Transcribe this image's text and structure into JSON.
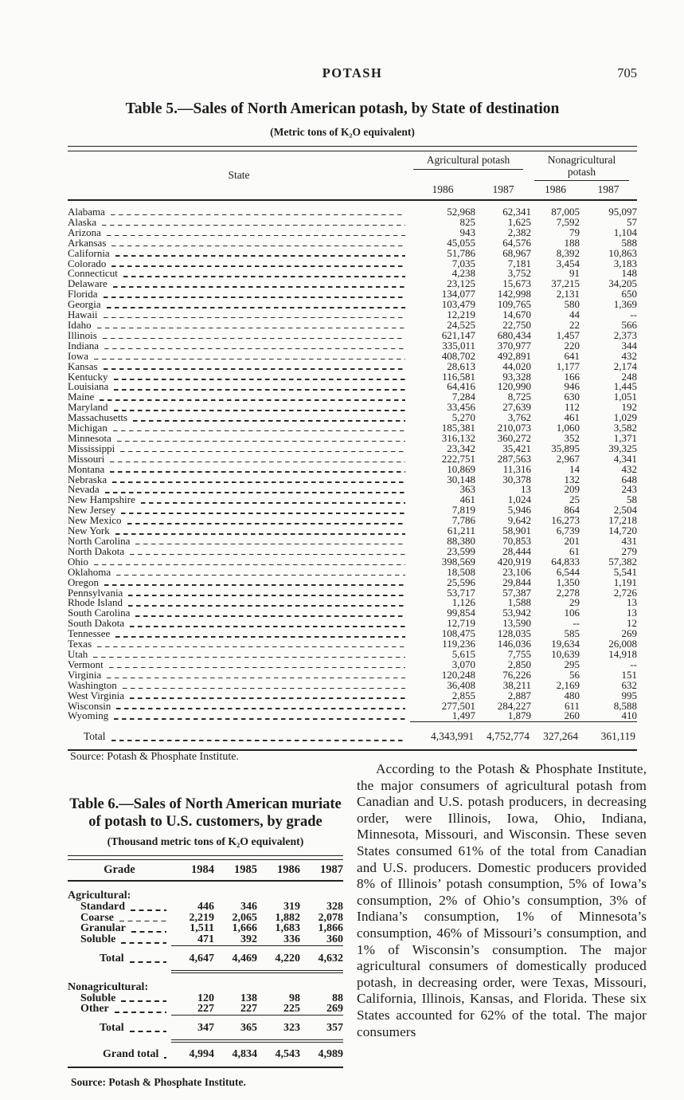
{
  "colors": {
    "ink": "#1c1c1c",
    "paper": "#fbfbf9",
    "rule": "#222222"
  },
  "page": {
    "running_title": "POTASH",
    "page_number": "705"
  },
  "table5": {
    "title": "Table 5.—Sales of North American potash, by State of destination",
    "subtitle": "(Metric tons of K₂O equivalent)",
    "state_header": "State",
    "group1": "Agricultural potash",
    "group2": "Nonagricultural potash",
    "years": [
      "1986",
      "1987",
      "1986",
      "1987"
    ],
    "rows": [
      {
        "state": "Alabama",
        "values": [
          "52,968",
          "62,341",
          "87,005",
          "95,097"
        ]
      },
      {
        "state": "Alaska",
        "values": [
          "825",
          "1,625",
          "7,592",
          "57"
        ]
      },
      {
        "state": "Arizona",
        "values": [
          "943",
          "2,382",
          "79",
          "1,104"
        ]
      },
      {
        "state": "Arkansas",
        "values": [
          "45,055",
          "64,576",
          "188",
          "588"
        ]
      },
      {
        "state": "California",
        "values": [
          "51,786",
          "68,967",
          "8,392",
          "10,863"
        ]
      },
      {
        "state": "Colorado",
        "values": [
          "7,035",
          "7,181",
          "3,454",
          "3,183"
        ]
      },
      {
        "state": "Connecticut",
        "values": [
          "4,238",
          "3,752",
          "91",
          "148"
        ]
      },
      {
        "state": "Delaware",
        "values": [
          "23,125",
          "15,673",
          "37,215",
          "34,205"
        ]
      },
      {
        "state": "Florida",
        "values": [
          "134,077",
          "142,998",
          "2,131",
          "650"
        ]
      },
      {
        "state": "Georgia",
        "values": [
          "103,479",
          "109,765",
          "580",
          "1,369"
        ]
      },
      {
        "state": "Hawaii",
        "values": [
          "12,219",
          "14,670",
          "44",
          "--"
        ]
      },
      {
        "state": "Idaho",
        "values": [
          "24,525",
          "22,750",
          "22",
          "566"
        ]
      },
      {
        "state": "Illinois",
        "values": [
          "621,147",
          "680,434",
          "1,457",
          "2,373"
        ]
      },
      {
        "state": "Indiana",
        "values": [
          "335,011",
          "370,977",
          "220",
          "344"
        ]
      },
      {
        "state": "Iowa",
        "values": [
          "408,702",
          "492,891",
          "641",
          "432"
        ]
      },
      {
        "state": "Kansas",
        "values": [
          "28,613",
          "44,020",
          "1,177",
          "2,174"
        ]
      },
      {
        "state": "Kentucky",
        "values": [
          "116,581",
          "93,328",
          "166",
          "248"
        ]
      },
      {
        "state": "Louisiana",
        "values": [
          "64,416",
          "120,990",
          "946",
          "1,445"
        ]
      },
      {
        "state": "Maine",
        "values": [
          "7,284",
          "8,725",
          "630",
          "1,051"
        ]
      },
      {
        "state": "Maryland",
        "values": [
          "33,456",
          "27,639",
          "112",
          "192"
        ]
      },
      {
        "state": "Massachusetts",
        "values": [
          "5,270",
          "3,762",
          "461",
          "1,029"
        ]
      },
      {
        "state": "Michigan",
        "values": [
          "185,381",
          "210,073",
          "1,060",
          "3,582"
        ]
      },
      {
        "state": "Minnesota",
        "values": [
          "316,132",
          "360,272",
          "352",
          "1,371"
        ]
      },
      {
        "state": "Mississippi",
        "values": [
          "23,342",
          "35,421",
          "35,895",
          "39,325"
        ]
      },
      {
        "state": "Missouri",
        "values": [
          "222,751",
          "287,563",
          "2,967",
          "4,341"
        ]
      },
      {
        "state": "Montana",
        "values": [
          "10,869",
          "11,316",
          "14",
          "432"
        ]
      },
      {
        "state": "Nebraska",
        "values": [
          "30,148",
          "30,378",
          "132",
          "648"
        ]
      },
      {
        "state": "Nevada",
        "values": [
          "363",
          "13",
          "209",
          "243"
        ]
      },
      {
        "state": "New Hampshire",
        "values": [
          "461",
          "1,024",
          "25",
          "58"
        ]
      },
      {
        "state": "New Jersey",
        "values": [
          "7,819",
          "5,946",
          "864",
          "2,504"
        ]
      },
      {
        "state": "New Mexico",
        "values": [
          "7,786",
          "9,642",
          "16,273",
          "17,218"
        ]
      },
      {
        "state": "New York",
        "values": [
          "61,211",
          "58,901",
          "6,739",
          "14,720"
        ]
      },
      {
        "state": "North Carolina",
        "values": [
          "88,380",
          "70,853",
          "201",
          "431"
        ]
      },
      {
        "state": "North Dakota",
        "values": [
          "23,599",
          "28,444",
          "61",
          "279"
        ]
      },
      {
        "state": "Ohio",
        "values": [
          "398,569",
          "420,919",
          "64,833",
          "57,382"
        ]
      },
      {
        "state": "Oklahoma",
        "values": [
          "18,508",
          "23,106",
          "6,544",
          "5,541"
        ]
      },
      {
        "state": "Oregon",
        "values": [
          "25,596",
          "29,844",
          "1,350",
          "1,191"
        ]
      },
      {
        "state": "Pennsylvania",
        "values": [
          "53,717",
          "57,387",
          "2,278",
          "2,726"
        ]
      },
      {
        "state": "Rhode Island",
        "values": [
          "1,126",
          "1,588",
          "29",
          "13"
        ]
      },
      {
        "state": "South Carolina",
        "values": [
          "99,854",
          "53,942",
          "106",
          "13"
        ]
      },
      {
        "state": "South Dakota",
        "values": [
          "12,719",
          "13,590",
          "--",
          "12"
        ]
      },
      {
        "state": "Tennessee",
        "values": [
          "108,475",
          "128,035",
          "585",
          "269"
        ]
      },
      {
        "state": "Texas",
        "values": [
          "119,236",
          "146,036",
          "19,634",
          "26,008"
        ]
      },
      {
        "state": "Utah",
        "values": [
          "5,615",
          "7,755",
          "10,639",
          "14,918"
        ]
      },
      {
        "state": "Vermont",
        "values": [
          "3,070",
          "2,850",
          "295",
          "--"
        ]
      },
      {
        "state": "Virginia",
        "values": [
          "120,248",
          "76,226",
          "56",
          "151"
        ]
      },
      {
        "state": "Washington",
        "values": [
          "36,408",
          "38,211",
          "2,169",
          "632"
        ]
      },
      {
        "state": "West Virginia",
        "values": [
          "2,855",
          "2,887",
          "480",
          "995"
        ]
      },
      {
        "state": "Wisconsin",
        "values": [
          "277,501",
          "284,227",
          "611",
          "8,588"
        ]
      },
      {
        "state": "Wyoming",
        "values": [
          "1,497",
          "1,879",
          "260",
          "410"
        ]
      }
    ],
    "total": {
      "label": "Total",
      "values": [
        "4,343,991",
        "4,752,774",
        "327,264",
        "361,119"
      ]
    },
    "source": "Source: Potash & Phosphate Institute."
  },
  "table6": {
    "title": "Table 6.—Sales of North American muriate of potash to U.S. customers, by grade",
    "subtitle": "(Thousand metric tons of K₂O equivalent)",
    "col_headers": [
      "Grade",
      "1984",
      "1985",
      "1986",
      "1987"
    ],
    "sections": [
      {
        "group": "Agricultural:",
        "rows": [
          {
            "label": "Standard",
            "values": [
              "446",
              "346",
              "319",
              "328"
            ]
          },
          {
            "label": "Coarse",
            "values": [
              "2,219",
              "2,065",
              "1,882",
              "2,078"
            ]
          },
          {
            "label": "Granular",
            "values": [
              "1,511",
              "1,666",
              "1,683",
              "1,866"
            ]
          },
          {
            "label": "Soluble",
            "values": [
              "471",
              "392",
              "336",
              "360"
            ]
          }
        ],
        "total": {
          "label": "Total",
          "values": [
            "4,647",
            "4,469",
            "4,220",
            "4,632"
          ]
        }
      },
      {
        "group": "Nonagricultural:",
        "rows": [
          {
            "label": "Soluble",
            "values": [
              "120",
              "138",
              "98",
              "88"
            ]
          },
          {
            "label": "Other",
            "values": [
              "227",
              "227",
              "225",
              "269"
            ]
          }
        ],
        "total": {
          "label": "Total",
          "values": [
            "347",
            "365",
            "323",
            "357"
          ]
        }
      }
    ],
    "grand_total": {
      "label": "Grand total",
      "values": [
        "4,994",
        "4,834",
        "4,543",
        "4,989"
      ]
    },
    "source": "Source: Potash & Phosphate Institute."
  },
  "article": {
    "paragraph": "According to the Potash & Phosphate Institute, the major consumers of agricultural potash from Canadian and U.S. potash producers, in decreasing order, were Illinois, Iowa, Ohio, Indiana, Minnesota, Missouri, and Wisconsin. These seven States consumed 61% of the total from Canadian and U.S. producers. Domestic producers provided 8% of Illinois’ potash consumption, 5% of Iowa’s consumption, 2% of Ohio’s consumption, 3% of Indiana’s consumption, 1% of Minnesota’s consumption, 46% of Missouri’s consumption, and 1% of Wisconsin’s consumption. The major agricultural consumers of domestically produced potash, in decreasing order, were Texas, Missouri, California, Illinois, Kansas, and Florida. These six States accounted for 62% of the total. The major consumers"
  }
}
